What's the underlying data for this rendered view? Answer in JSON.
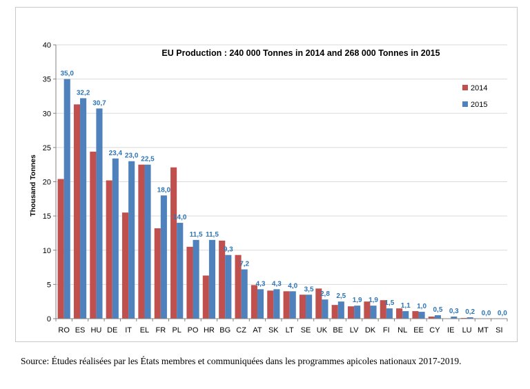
{
  "chart_data": {
    "type": "bar",
    "title": "EU Production : 240 000 Tonnes in 2014 and 268 000 Tonnes in 2015",
    "ylabel": "Thousand  Tonnes",
    "xlabel": "",
    "ylim": [
      0,
      40
    ],
    "yticks": [
      "0",
      "5",
      "10",
      "15",
      "20",
      "25",
      "30",
      "35",
      "40"
    ],
    "grid": true,
    "legend_position": "top-right",
    "categories": [
      "RO",
      "ES",
      "HU",
      "DE",
      "IT",
      "EL",
      "FR",
      "PL",
      "PO",
      "HR",
      "BG",
      "CZ",
      "AT",
      "SK",
      "LT",
      "SE",
      "UK",
      "BE",
      "LV",
      "DK",
      "FI",
      "NL",
      "EE",
      "CY",
      "IE",
      "LU",
      "MT",
      "SI"
    ],
    "series": [
      {
        "name": "2014",
        "color": "#c0504d",
        "values": [
          20.4,
          31.3,
          24.4,
          20.2,
          15.5,
          22.5,
          13.2,
          22.1,
          10.5,
          6.3,
          11.4,
          9.3,
          4.9,
          4.1,
          4.0,
          3.5,
          4.4,
          2.0,
          1.8,
          2.5,
          2.7,
          1.5,
          1.1,
          0.3,
          0.0,
          0.1,
          0.0,
          0.0
        ]
      },
      {
        "name": "2015",
        "color": "#4f81bd",
        "values": [
          35.0,
          32.2,
          30.7,
          23.4,
          23.0,
          22.5,
          18.0,
          14.0,
          11.5,
          11.5,
          9.3,
          7.2,
          4.3,
          4.3,
          4.0,
          3.5,
          2.8,
          2.5,
          1.9,
          1.9,
          1.5,
          1.1,
          1.0,
          0.5,
          0.3,
          0.2,
          0.0,
          0.0
        ],
        "labels": [
          "35,0",
          "32,2",
          "30,7",
          "23,4",
          "23,0",
          "22,5",
          "18,0",
          "14,0",
          "11,5",
          "11,5",
          "9,3",
          "7,2",
          "4,3",
          "4,3",
          "4,0",
          "3,5",
          "2,8",
          "2,5",
          "1,9",
          "1,9",
          "1,5",
          "1,1",
          "1,0",
          "0,5",
          "0,3",
          "0,2",
          "0,0",
          "0,0"
        ]
      }
    ]
  },
  "source_note": "Source: Études réalisées par les États membres et communiquées dans les programmes apicoles nationaux 2017-2019."
}
